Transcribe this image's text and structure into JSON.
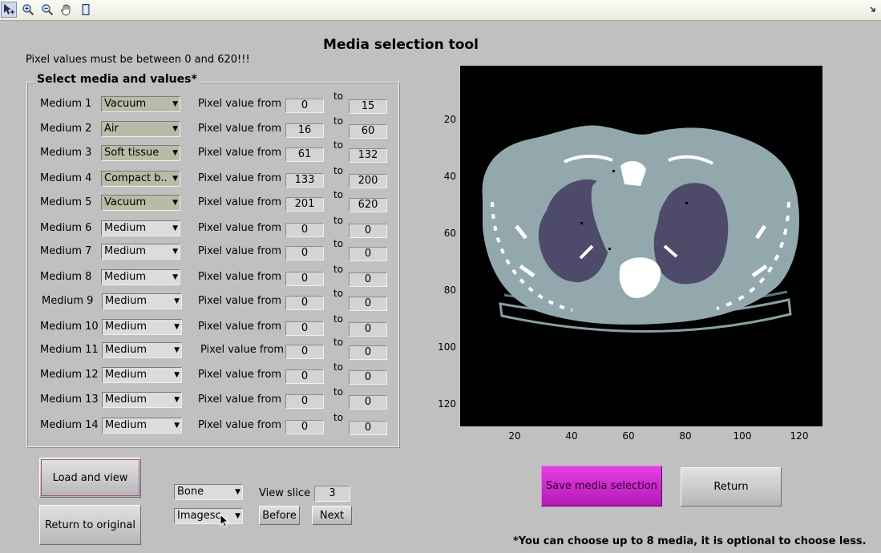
{
  "toolbar": {
    "icons": [
      "data-cursor-icon",
      "zoom-in-icon",
      "zoom-out-icon",
      "pan-hand-icon",
      "colorbar-icon",
      "dock-arrow-icon"
    ]
  },
  "title": "Media selection tool",
  "warning": "Pixel values must be between 0 and 620!!!",
  "group_title": "Select media and values*",
  "pixel_label": "Pixel value from",
  "to_label": "to",
  "media": [
    {
      "label": "Medium 1",
      "material": "Vacuum",
      "from": "0",
      "to": "15"
    },
    {
      "label": "Medium 2",
      "material": "Air",
      "from": "16",
      "to": "60"
    },
    {
      "label": "Medium 3",
      "material": "Soft tissue",
      "from": "61",
      "to": "132"
    },
    {
      "label": "Medium 4",
      "material": "Compact b...",
      "from": "133",
      "to": "200"
    },
    {
      "label": "Medium 5",
      "material": "Vacuum",
      "from": "201",
      "to": "620"
    },
    {
      "label": "Medium 6",
      "material": "Medium",
      "from": "0",
      "to": "0"
    },
    {
      "label": "Medium 7",
      "material": "Medium",
      "from": "0",
      "to": "0"
    },
    {
      "label": "Medium 8",
      "material": "Medium",
      "from": "0",
      "to": "0"
    },
    {
      "label": "Medium 9",
      "material": "Medium",
      "from": "0",
      "to": "0"
    },
    {
      "label": "Medium 10",
      "material": "Medium",
      "from": "0",
      "to": "0"
    },
    {
      "label": "Medium 11",
      "material": "Medium",
      "from": "0",
      "to": "0"
    },
    {
      "label": "Medium 12",
      "material": "Medium",
      "from": "0",
      "to": "0"
    },
    {
      "label": "Medium 13",
      "material": "Medium",
      "from": "0",
      "to": "0"
    },
    {
      "label": "Medium 14",
      "material": "Medium",
      "from": "0",
      "to": "0"
    }
  ],
  "image_axes": {
    "x_ticks": [
      "20",
      "40",
      "60",
      "80",
      "100",
      "120"
    ],
    "y_ticks": [
      "20",
      "40",
      "60",
      "80",
      "100",
      "120"
    ]
  },
  "controls": {
    "load_view": "Load and view",
    "return_original": "Return to original",
    "tissue_select": "Bone",
    "display_select": "Imagesc",
    "view_slice_label": "View slice",
    "view_slice_value": "3",
    "before": "Before",
    "next": "Next",
    "save": "Save media selection",
    "return": "Return"
  },
  "footnote": "*You can choose up to 8 media, it is optional to choose less.",
  "colors": {
    "background": "#c0c0c0",
    "save_button": "#d42ed4",
    "filled_select": "#b8bca6"
  }
}
